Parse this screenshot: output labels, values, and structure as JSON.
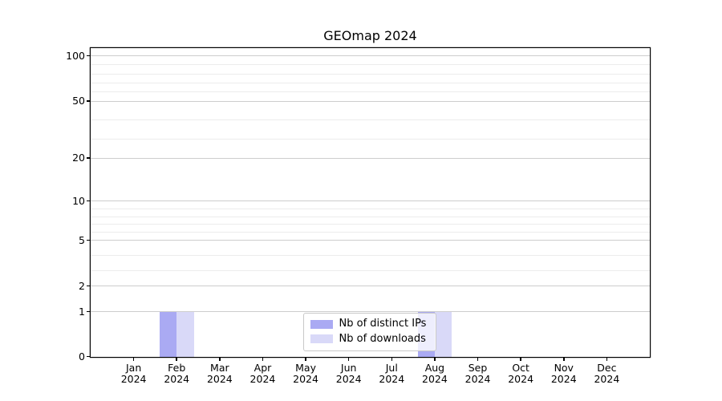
{
  "chart_data": {
    "type": "bar",
    "title": "GEOmap 2024",
    "categories": [
      "Jan",
      "Feb",
      "Mar",
      "Apr",
      "May",
      "Jun",
      "Jul",
      "Aug",
      "Sep",
      "Oct",
      "Nov",
      "Dec"
    ],
    "year": "2024",
    "series": [
      {
        "name": "Nb of distinct IPs",
        "color": "#aaaaf3",
        "values": [
          0,
          1,
          0,
          0,
          0,
          0,
          0,
          1,
          0,
          0,
          0,
          0
        ]
      },
      {
        "name": "Nb of downloads",
        "color": "#d9d9f8",
        "values": [
          0,
          1,
          0,
          0,
          0,
          0,
          0,
          1,
          0,
          0,
          0,
          0
        ]
      }
    ],
    "y_axis": {
      "scale": "symlog-like",
      "tick_values": [
        0,
        1,
        2,
        5,
        10,
        20,
        50,
        100
      ],
      "minor_gridline_values": [
        3,
        4,
        6,
        7,
        8,
        9,
        30,
        40,
        60,
        70,
        80,
        90
      ]
    },
    "x_axis": {
      "tick_count": 12
    },
    "legend": {
      "position": "lower-center-inside",
      "frame": true
    },
    "grid": "horizontal",
    "colors": {
      "major_grid": "#cdcdcd",
      "minor_grid": "#ececec",
      "axis": "#000000",
      "background": "#ffffff"
    }
  }
}
